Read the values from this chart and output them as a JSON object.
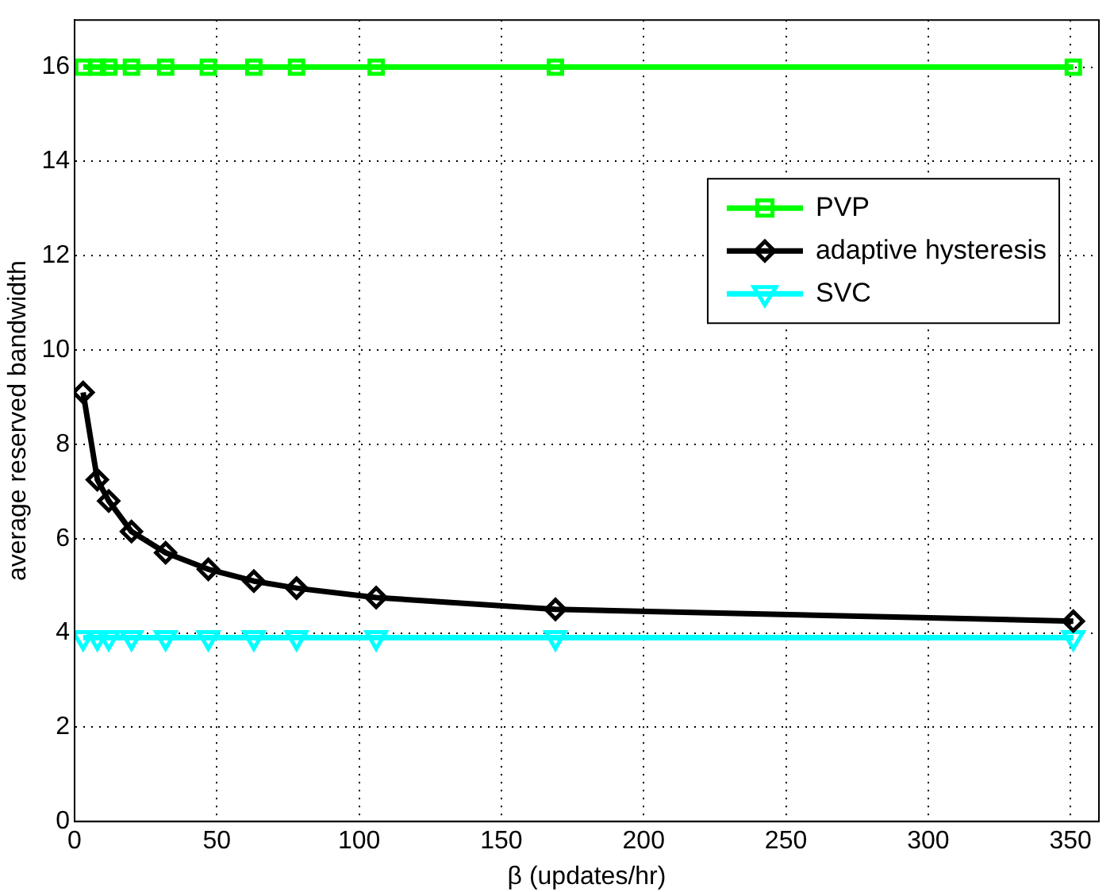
{
  "chart_data": {
    "type": "line",
    "xlabel": "β (updates/hr)",
    "ylabel": "average reserved bandwidth",
    "x": [
      3,
      8,
      12,
      20,
      32,
      47,
      63,
      78,
      106,
      169,
      351
    ],
    "series": [
      {
        "name": "PVP",
        "color": "#00ff00",
        "marker": "square",
        "values": [
          16,
          16,
          16,
          16,
          16,
          16,
          16,
          16,
          16,
          16,
          16
        ]
      },
      {
        "name": "adaptive hysteresis",
        "color": "#000000",
        "marker": "diamond",
        "values": [
          9.1,
          7.25,
          6.8,
          6.15,
          5.7,
          5.35,
          5.1,
          4.95,
          4.75,
          4.5,
          4.25
        ]
      },
      {
        "name": "SVC",
        "color": "#00ffff",
        "marker": "triangle",
        "values": [
          3.9,
          3.9,
          3.9,
          3.9,
          3.9,
          3.9,
          3.9,
          3.9,
          3.9,
          3.9,
          3.9
        ]
      }
    ],
    "xlim": [
      0,
      360
    ],
    "xticks": [
      0,
      50,
      100,
      150,
      200,
      250,
      300,
      350
    ],
    "ylim": [
      0,
      17
    ],
    "yticks": [
      0,
      2,
      4,
      6,
      8,
      10,
      12,
      14,
      16
    ],
    "grid": true,
    "legend": "top right",
    "line_style": "solid"
  }
}
